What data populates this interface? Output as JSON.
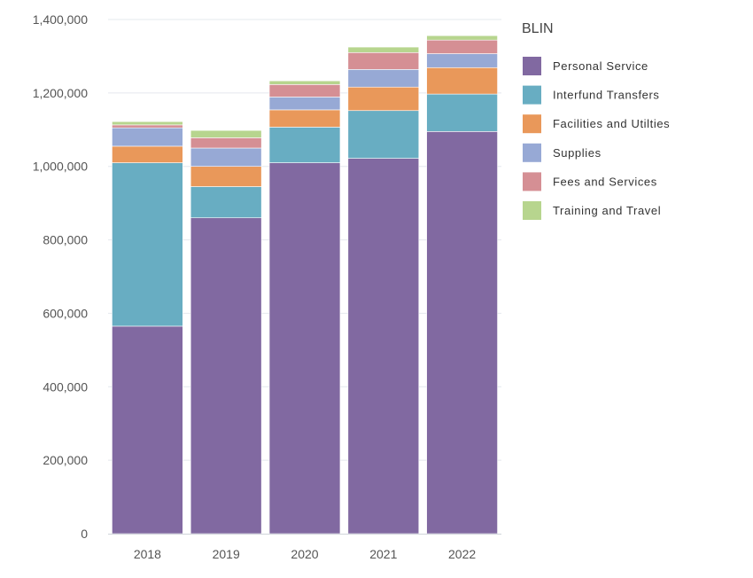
{
  "chart_data": {
    "type": "bar",
    "stacked": true,
    "categories": [
      "2018",
      "2019",
      "2020",
      "2021",
      "2022"
    ],
    "series": [
      {
        "name": "Personal Service",
        "color": "#8169a1",
        "values": [
          565000,
          860000,
          1010000,
          1022000,
          1095000
        ]
      },
      {
        "name": "Interfund Transfers",
        "color": "#68adc2",
        "values": [
          445000,
          85000,
          97000,
          130000,
          102000
        ]
      },
      {
        "name": "Facilities and Utilties",
        "color": "#e9985a",
        "values": [
          45000,
          55000,
          47000,
          64000,
          72000
        ]
      },
      {
        "name": "Supplies",
        "color": "#97a9d5",
        "values": [
          50000,
          50000,
          35000,
          48000,
          38000
        ]
      },
      {
        "name": "Fees and Services",
        "color": "#d58f94",
        "values": [
          8000,
          28000,
          34000,
          46000,
          37000
        ]
      },
      {
        "name": "Training and Travel",
        "color": "#b7d58e",
        "values": [
          9000,
          20000,
          10000,
          15000,
          12000
        ]
      }
    ],
    "legend_title": "BLIN",
    "legend_position": "right",
    "ylim": [
      0,
      1400000
    ],
    "yticks": [
      0,
      200000,
      400000,
      600000,
      800000,
      1000000,
      1200000,
      1400000
    ],
    "ytick_labels": [
      "0",
      "200,000",
      "400,000",
      "600,000",
      "800,000",
      "1,000,000",
      "1,200,000",
      "1,400,000"
    ],
    "grid": true,
    "xlabel": "",
    "ylabel": "",
    "title": ""
  }
}
